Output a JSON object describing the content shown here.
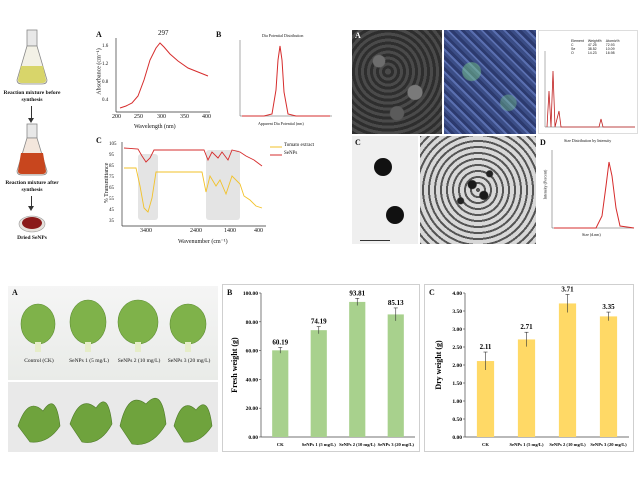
{
  "scheme": {
    "flask1_caption": "Reaction mixture before synthesis",
    "flask2_caption": "Reaction mixture after synthesis",
    "dish_caption": "Dried SeNPs"
  },
  "panelA_uv": {
    "label": "A",
    "peak_label": "297",
    "ylabel": "Absorbance (cm⁻¹)",
    "xlabel": "Wavelength (nm)",
    "xticks": [
      "200",
      "250",
      "300",
      "350",
      "400"
    ],
    "yticks": [
      "0.4",
      "0.8",
      "1.2",
      "1.6"
    ]
  },
  "panelB_dls": {
    "label": "B",
    "title": "Dia Potential Distribution",
    "xlabel": "Apparent Dia Potential (nm)"
  },
  "panelC_ftir": {
    "label": "C",
    "ylabel": "% Transmittance",
    "xlabel": "Wavenumber (cm⁻¹)",
    "xticks": [
      "3400",
      "2400",
      "1400",
      "400"
    ],
    "yticks": [
      "105",
      "95",
      "85",
      "75",
      "65",
      "55",
      "45",
      "35"
    ],
    "legend": [
      "Tomato extract",
      "SeNPs"
    ],
    "colors": {
      "tomato": "#f2c22a",
      "senps": "#d62c2c"
    }
  },
  "right_top": {
    "labelA": "A",
    "labelC": "C",
    "labelD": "D",
    "edx_table_headers": [
      "Element",
      "Weight%",
      "Atomic%"
    ],
    "edx_table_rows": [
      [
        "C",
        "47.25",
        "72.93"
      ],
      [
        "Se",
        "38.52",
        "10.09"
      ],
      [
        "O",
        "14.23",
        "16.98"
      ]
    ],
    "sizedist_title": "Size Distribution by Intensity",
    "sizedist_xlabel": "Size (d.nm)",
    "sizedist_ylabel": "Intensity (Percent)"
  },
  "bottom": {
    "labelA": "A",
    "labelB": "B",
    "labelC": "C",
    "photo_labels": [
      "Control (CK)",
      "SeNPs 1 (5 mg/L)",
      "SeNPs 2 (10 mg/L)",
      "SeNPs 3 (20 mg/L)"
    ]
  },
  "chart_data": [
    {
      "type": "bar",
      "id": "fresh_weight",
      "categories": [
        "CK",
        "SeNPs 1 (5 mg/L)",
        "SeNPs 2 (10 mg/L)",
        "SeNPs 3 (20 mg/L)"
      ],
      "values": [
        60.19,
        74.19,
        93.81,
        85.13
      ],
      "value_labels": [
        "60.19",
        "74.19",
        "93.81",
        "85.13"
      ],
      "errors": [
        2.0,
        2.5,
        2.5,
        4.5
      ],
      "ylabel": "Fresh weight (g)",
      "xlabel": "",
      "ylim": [
        0,
        100
      ],
      "yticks": [
        "0.00",
        "20.00",
        "40.00",
        "60.00",
        "80.00",
        "100.00"
      ],
      "color": "#a8d18d"
    },
    {
      "type": "bar",
      "id": "dry_weight",
      "categories": [
        "CK",
        "SeNPs 1 (5 mg/L)",
        "SeNPs 2 (10 mg/L)",
        "SeNPs 3 (20 mg/L)"
      ],
      "values": [
        2.11,
        2.71,
        3.71,
        3.35
      ],
      "value_labels": [
        "2.11",
        "2.71",
        "3.71",
        "3.35"
      ],
      "errors": [
        0.25,
        0.2,
        0.25,
        0.12
      ],
      "ylabel": "Dry weight (g)",
      "xlabel": "",
      "ylim": [
        0,
        4
      ],
      "yticks": [
        "0.00",
        "0.50",
        "1.00",
        "1.50",
        "2.00",
        "2.50",
        "3.00",
        "3.50",
        "4.00"
      ],
      "color": "#ffd966"
    }
  ]
}
